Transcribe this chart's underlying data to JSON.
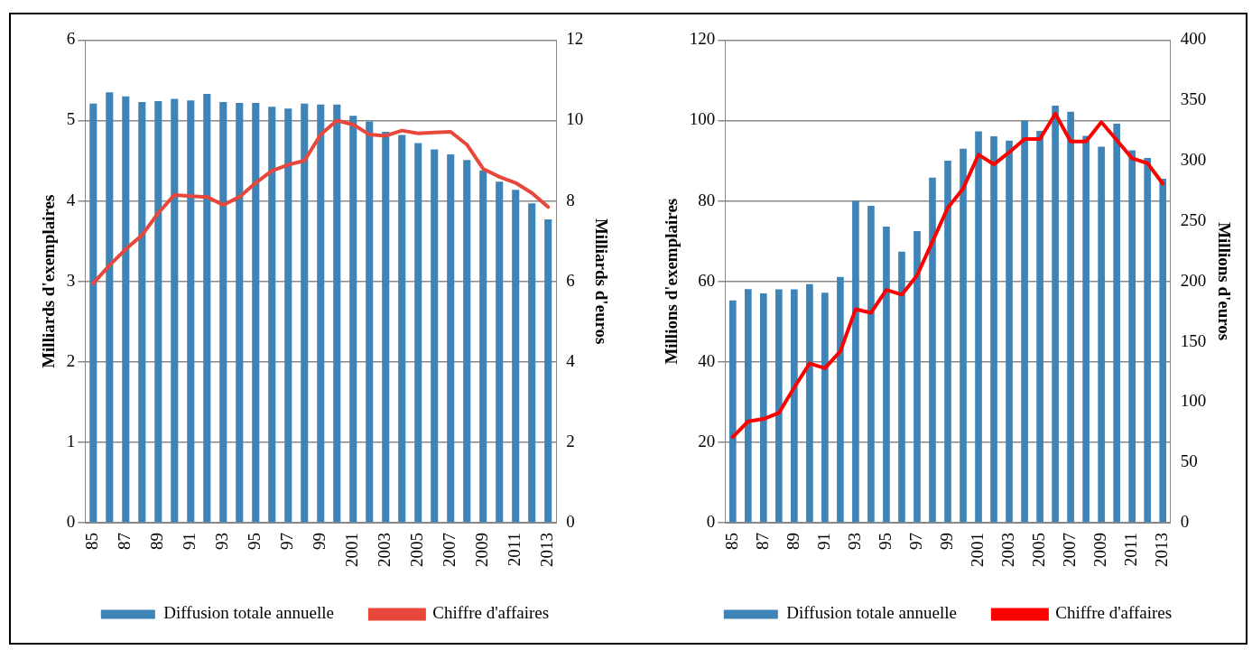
{
  "chart_data": [
    {
      "type": "bar",
      "categories": [
        "85",
        null,
        "87",
        null,
        "89",
        null,
        "91",
        null,
        "93",
        null,
        "95",
        null,
        "97",
        null,
        "99",
        null,
        "2001",
        null,
        "2003",
        null,
        "2005",
        null,
        "2007",
        null,
        "2009",
        null,
        "2011",
        null,
        "2013"
      ],
      "series": [
        {
          "name": "Diffusion totale annuelle",
          "color": "#3f84b7",
          "values": [
            5.21,
            5.35,
            5.3,
            5.23,
            5.24,
            5.27,
            5.25,
            5.33,
            5.23,
            5.22,
            5.22,
            5.17,
            5.15,
            5.21,
            5.2,
            5.2,
            5.06,
            4.99,
            4.86,
            4.82,
            4.72,
            4.64,
            4.58,
            4.51,
            4.38,
            4.24,
            4.14,
            3.97,
            3.77
          ]
        },
        {
          "name": "Chiffre d'affaires",
          "color": "#e8473c",
          "type": "line",
          "axis": "y2",
          "values": [
            5.95,
            6.4,
            6.8,
            7.15,
            7.7,
            8.15,
            8.12,
            8.1,
            7.9,
            8.1,
            8.45,
            8.75,
            8.9,
            9.0,
            9.65,
            10.0,
            9.9,
            9.65,
            9.62,
            9.75,
            9.68,
            9.7,
            9.72,
            9.4,
            8.8,
            8.6,
            8.45,
            8.2,
            7.85
          ]
        }
      ],
      "ylabel": "Milliards d'exemplaires",
      "y2label": "Milliards d'euros",
      "ylim": [
        0,
        6
      ],
      "yticks": [
        0,
        1,
        2,
        3,
        4,
        5,
        6
      ],
      "y2lim": [
        0,
        12
      ],
      "y2ticks": [
        0,
        2,
        4,
        6,
        8,
        10,
        12
      ],
      "grid": "y",
      "legend": "bottom",
      "marker": "none"
    },
    {
      "type": "bar",
      "categories": [
        "85",
        null,
        "87",
        null,
        "89",
        null,
        "91",
        null,
        "93",
        null,
        "95",
        null,
        "97",
        null,
        "99",
        null,
        "2001",
        null,
        "2003",
        null,
        "2005",
        null,
        "2007",
        null,
        "2009",
        null,
        "2011",
        null,
        "2013"
      ],
      "series": [
        {
          "name": "Diffusion totale annuelle",
          "color": "#3f84b7",
          "values": [
            55.3,
            58.1,
            57.0,
            58.0,
            58.0,
            59.3,
            57.2,
            61.1,
            80.0,
            78.8,
            73.6,
            67.4,
            72.5,
            85.8,
            90.0,
            93.0,
            97.3,
            96.1,
            95.0,
            100.0,
            97.4,
            103.7,
            102.2,
            96.2,
            93.5,
            99.2,
            92.6,
            90.7,
            85.5
          ]
        },
        {
          "name": "Chiffre d'affaires",
          "color": "#ff0000",
          "type": "line",
          "axis": "y2",
          "values": [
            71,
            84,
            86,
            91,
            112,
            132,
            128,
            142,
            177,
            174,
            193,
            189,
            205,
            233,
            261,
            277,
            305,
            297,
            307,
            318,
            318,
            339,
            316,
            316,
            332,
            317,
            302,
            298,
            281
          ]
        }
      ],
      "ylabel": "Millions d'exemplaires",
      "y2label": "Millions d'euros",
      "ylim": [
        0,
        120
      ],
      "yticks": [
        0,
        20,
        40,
        60,
        80,
        100,
        120
      ],
      "y2lim": [
        0,
        400
      ],
      "y2ticks": [
        0,
        50,
        100,
        150,
        200,
        250,
        300,
        350,
        400
      ],
      "grid": "y",
      "legend": "bottom",
      "marker": "none"
    }
  ]
}
